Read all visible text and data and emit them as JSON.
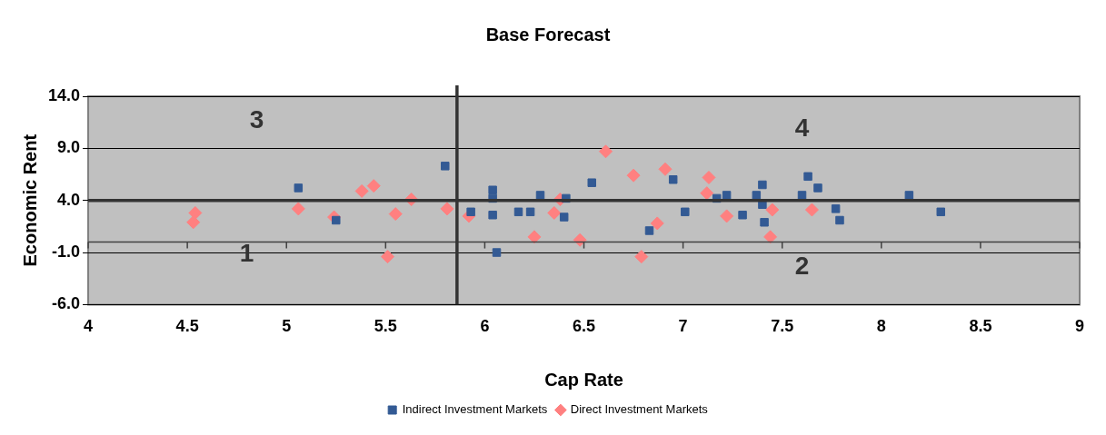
{
  "chart_data": {
    "type": "scatter",
    "title": "Base Forecast",
    "xlabel": "Cap Rate",
    "ylabel": "Economic Rent",
    "xlim": [
      4,
      9
    ],
    "xticks": [
      4,
      4.5,
      5,
      5.5,
      6,
      6.5,
      7,
      7.5,
      8,
      8.5,
      9
    ],
    "ylim": [
      -6,
      14
    ],
    "yticks": [
      {
        "value": -6,
        "label": "-6.0"
      },
      {
        "value": -1,
        "label": "-1.0"
      },
      {
        "value": 4,
        "label": "4.0"
      },
      {
        "value": 9,
        "label": "9.0"
      },
      {
        "value": 14,
        "label": "14.0"
      }
    ],
    "grid": "y",
    "legend": "bottom",
    "series": [
      {
        "name": "Direct Investment Markets",
        "color": "#ff8080",
        "marker": "diamond",
        "x": [
          4.54,
          4.53,
          5.06,
          5.24,
          5.38,
          5.44,
          5.51,
          5.55,
          5.63,
          5.81,
          5.92,
          6.25,
          6.35,
          6.38,
          6.48,
          6.61,
          6.75,
          6.79,
          6.87,
          6.91,
          7.13,
          7.12,
          7.22,
          7.44,
          7.45,
          7.65
        ],
        "values": [
          2.8,
          1.9,
          3.2,
          2.4,
          4.9,
          5.4,
          -1.4,
          2.7,
          4.1,
          3.2,
          2.5,
          0.5,
          2.8,
          4.1,
          0.2,
          8.7,
          6.4,
          -1.4,
          1.8,
          7.0,
          6.2,
          4.7,
          2.5,
          0.5,
          3.1,
          3.1
        ]
      },
      {
        "name": "Indirect Investment Markets",
        "color": "#335a94",
        "marker": "square",
        "x": [
          5.06,
          5.25,
          5.8,
          5.93,
          6.04,
          6.04,
          6.04,
          6.06,
          6.17,
          6.23,
          6.28,
          6.41,
          6.4,
          6.54,
          6.83,
          6.95,
          7.01,
          7.17,
          7.22,
          7.3,
          7.37,
          7.4,
          7.4,
          7.41,
          7.6,
          7.63,
          7.68,
          7.77,
          7.79,
          8.14,
          8.3
        ],
        "values": [
          5.2,
          2.1,
          7.3,
          2.9,
          5.0,
          4.2,
          2.6,
          -1.0,
          2.9,
          2.9,
          4.5,
          4.2,
          2.4,
          5.7,
          1.1,
          6.0,
          2.9,
          4.2,
          4.5,
          2.6,
          4.5,
          5.5,
          3.6,
          1.9,
          4.5,
          6.3,
          5.2,
          3.2,
          2.1,
          4.5,
          2.9
        ]
      }
    ],
    "ref_lines": [
      {
        "axis": "y",
        "value": 0,
        "color": "#404040"
      },
      {
        "axis": "y",
        "value": 4,
        "color": "#333333"
      },
      {
        "axis": "x",
        "value": 5.86,
        "color": "#333333"
      }
    ],
    "annotations": [
      "3",
      "4",
      "1",
      "2"
    ]
  }
}
